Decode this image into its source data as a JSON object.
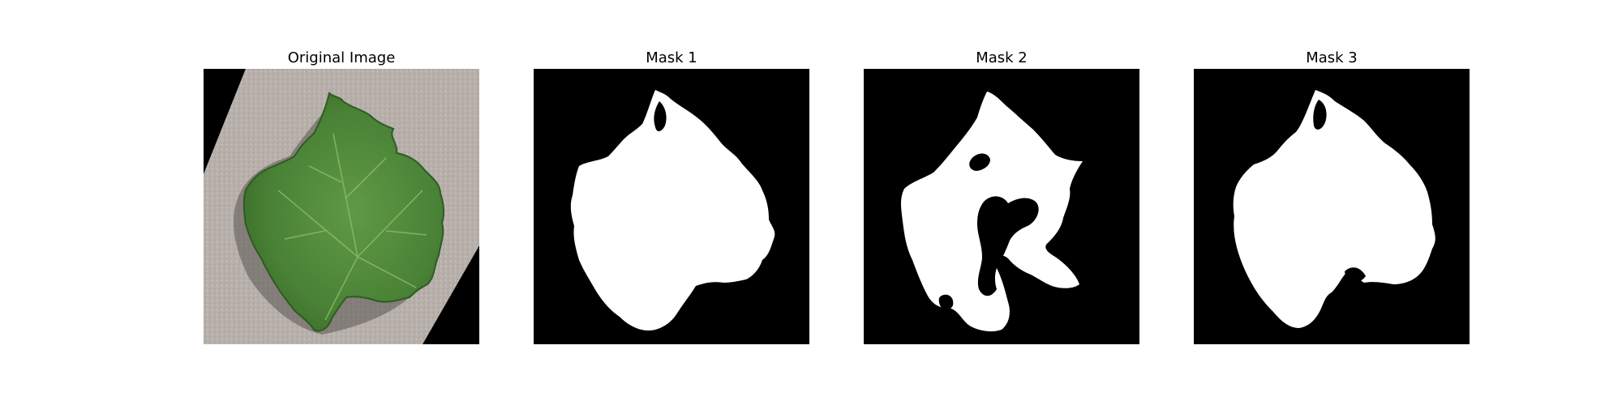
{
  "figure": {
    "panels": [
      {
        "title": "Original Image"
      },
      {
        "title": "Mask 1"
      },
      {
        "title": "Mask 2"
      },
      {
        "title": "Mask 3"
      }
    ]
  },
  "colors": {
    "background": "#ffffff",
    "mask_background": "#000000",
    "mask_foreground": "#ffffff",
    "leaf_green": "#4f8a3a",
    "leaf_dark": "#2f5f24",
    "stone_grey": "#b9b1ab"
  }
}
